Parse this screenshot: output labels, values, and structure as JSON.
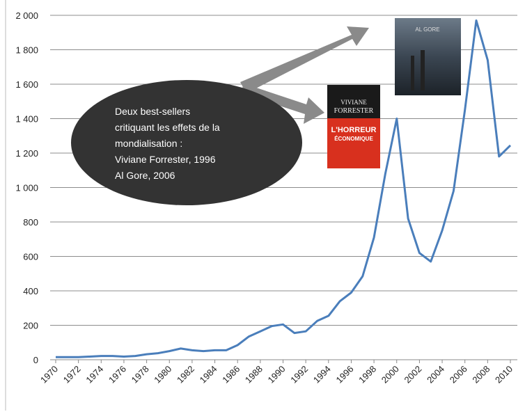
{
  "chart_data": {
    "type": "line",
    "x": [
      1970,
      1971,
      1972,
      1973,
      1974,
      1975,
      1976,
      1977,
      1978,
      1979,
      1980,
      1981,
      1982,
      1983,
      1984,
      1985,
      1986,
      1987,
      1988,
      1989,
      1990,
      1991,
      1992,
      1993,
      1994,
      1995,
      1996,
      1997,
      1998,
      1999,
      2000,
      2001,
      2002,
      2003,
      2004,
      2005,
      2006,
      2007,
      2008,
      2009,
      2010
    ],
    "values": [
      15,
      15,
      15,
      18,
      22,
      22,
      18,
      22,
      32,
      38,
      50,
      65,
      55,
      50,
      55,
      55,
      85,
      135,
      165,
      195,
      205,
      155,
      165,
      225,
      255,
      340,
      390,
      485,
      710,
      1080,
      1400,
      820,
      620,
      570,
      750,
      980,
      1450,
      1970,
      1740,
      1180,
      1245
    ],
    "color": "#4a7ebb",
    "xlim": [
      1970,
      2010
    ],
    "xticks": [
      1970,
      1972,
      1974,
      1976,
      1978,
      1980,
      1982,
      1984,
      1986,
      1988,
      1990,
      1992,
      1994,
      1996,
      1998,
      2000,
      2002,
      2004,
      2006,
      2008,
      2010
    ],
    "ylim": [
      0,
      2000
    ],
    "yticks": [
      0,
      200,
      400,
      600,
      800,
      {
        "value": 1000,
        "label": "1 000"
      },
      {
        "value": 1200,
        "label": "1 200"
      },
      {
        "value": 1400,
        "label": "1 400"
      },
      {
        "value": 1600,
        "label": "1 600"
      },
      {
        "value": 1800,
        "label": "1 800"
      },
      {
        "value": 2000,
        "label": "2 000"
      }
    ],
    "grid": true,
    "annotation": [
      "Deux best-sellers",
      "critiquant les effets de la",
      "mondialisation :",
      "Viviane Forrester, 1996",
      "Al Gore, 2006"
    ],
    "forrester_cover": [
      "VIVIANE",
      "FORRESTER",
      "L'HORREUR",
      "ÉCONOMIQUE"
    ],
    "gore_cover": [
      "AL GORE"
    ]
  }
}
